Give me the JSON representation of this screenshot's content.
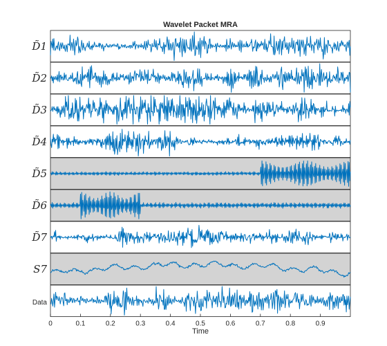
{
  "figure": {
    "title": "Wavelet Packet MRA"
  },
  "chart_data": {
    "type": "line",
    "title": "Wavelet Packet MRA",
    "xlabel": "Time",
    "xlim": [
      0,
      1
    ],
    "xticks": [
      "0",
      "0.1",
      "0.2",
      "0.3",
      "0.4",
      "0.5",
      "0.6",
      "0.7",
      "0.8",
      "0.9"
    ],
    "xtick_values": [
      0,
      0.1,
      0.2,
      0.3,
      0.4,
      0.5,
      0.6,
      0.7,
      0.8,
      0.9
    ],
    "grid": false,
    "line_color": "#0072bd",
    "highlight_color": "#d3d3d3",
    "series": [
      {
        "name": "D̃1",
        "highlighted": false,
        "style": "noise_bursty",
        "amplitude": 0.75
      },
      {
        "name": "D̃2",
        "highlighted": false,
        "style": "noise_bursty",
        "amplitude": 0.85
      },
      {
        "name": "D̃3",
        "highlighted": false,
        "style": "noise_bursty",
        "amplitude": 0.9
      },
      {
        "name": "D̃4",
        "highlighted": false,
        "style": "noise_bursty",
        "amplitude": 0.8
      },
      {
        "name": "D̃5",
        "highlighted": true,
        "style": "burst",
        "burst_start": 0.7,
        "burst_end": 1.0,
        "amplitude": 0.9,
        "base_amplitude": 0.1
      },
      {
        "name": "D̃6",
        "highlighted": true,
        "style": "burst",
        "burst_start": 0.1,
        "burst_end": 0.3,
        "amplitude": 0.95,
        "base_amplitude": 0.15
      },
      {
        "name": "D̃7",
        "highlighted": false,
        "style": "noise_bursty",
        "amplitude": 0.55
      },
      {
        "name": "S7",
        "highlighted": true,
        "style": "smooth",
        "amplitude": 0.6
      },
      {
        "name": "Data",
        "highlighted": false,
        "style": "noise_bursty",
        "amplitude": 0.8
      }
    ]
  }
}
